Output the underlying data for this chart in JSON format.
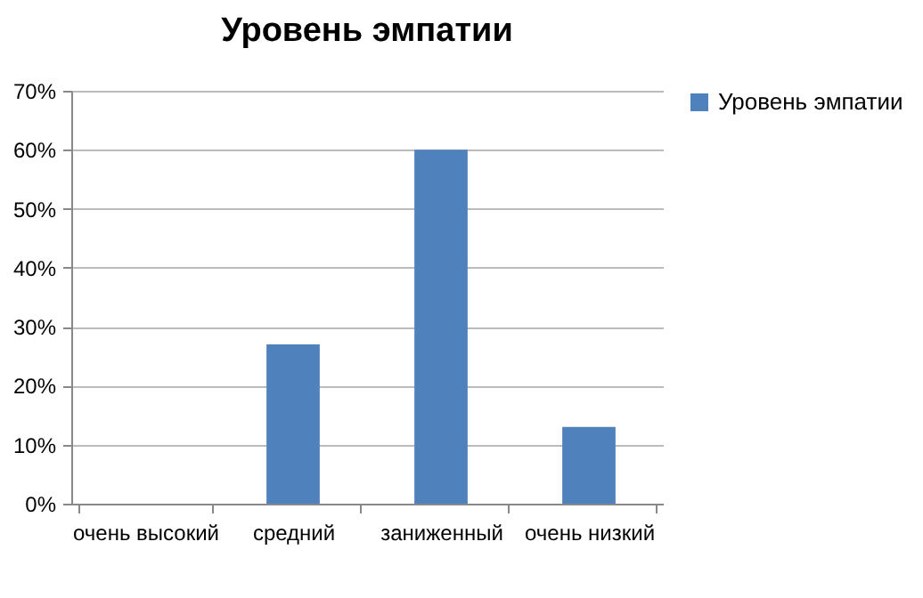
{
  "chart_data": {
    "type": "bar",
    "title": "Уровень эмпатии",
    "categories": [
      "очень высокий",
      "средний",
      "заниженный",
      "очень низкий"
    ],
    "series": [
      {
        "name": "Уровень эмпатии",
        "color": "#4f81bd",
        "values": [
          0,
          27,
          60,
          13
        ]
      }
    ],
    "ylim": [
      0,
      70
    ],
    "yticks": [
      {
        "value": 0,
        "label": "0%"
      },
      {
        "value": 10,
        "label": "10%"
      },
      {
        "value": 20,
        "label": "20%"
      },
      {
        "value": 30,
        "label": "30%"
      },
      {
        "value": 40,
        "label": "40%"
      },
      {
        "value": 50,
        "label": "50%"
      },
      {
        "value": 60,
        "label": "60%"
      },
      {
        "value": 70,
        "label": "70%"
      }
    ],
    "grid": "y",
    "legend": "right"
  }
}
